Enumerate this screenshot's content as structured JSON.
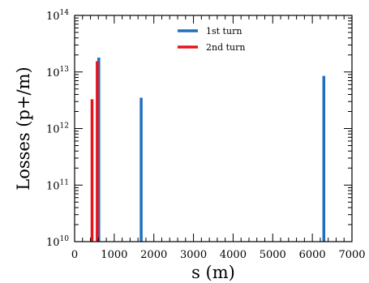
{
  "chart_data": {
    "type": "bar",
    "xlabel": "s (m)",
    "ylabel": "Losses (p+/m)",
    "xlim": [
      0,
      7000
    ],
    "ylim": [
      10000000000.0,
      100000000000000.0
    ],
    "yscale": "log",
    "x_ticks": [
      "0",
      "1000",
      "2000",
      "3000",
      "4000",
      "5000",
      "6000",
      "7000"
    ],
    "y_ticks": [
      {
        "base": "10",
        "exp": "10"
      },
      {
        "base": "10",
        "exp": "11"
      },
      {
        "base": "10",
        "exp": "12"
      },
      {
        "base": "10",
        "exp": "13"
      },
      {
        "base": "10",
        "exp": "14"
      }
    ],
    "legend_position": "top-center",
    "series": [
      {
        "name": "1st turn",
        "color": "#1f6fbf",
        "points": [
          {
            "x": 610,
            "y": 18000000000000.0
          },
          {
            "x": 1680,
            "y": 3500000000000.0
          },
          {
            "x": 6290,
            "y": 8500000000000.0
          }
        ]
      },
      {
        "name": "2nd turn",
        "color": "#e8131b",
        "points": [
          {
            "x": 440,
            "y": 3300000000000.0
          },
          {
            "x": 570,
            "y": 15500000000000.0
          }
        ]
      }
    ]
  }
}
